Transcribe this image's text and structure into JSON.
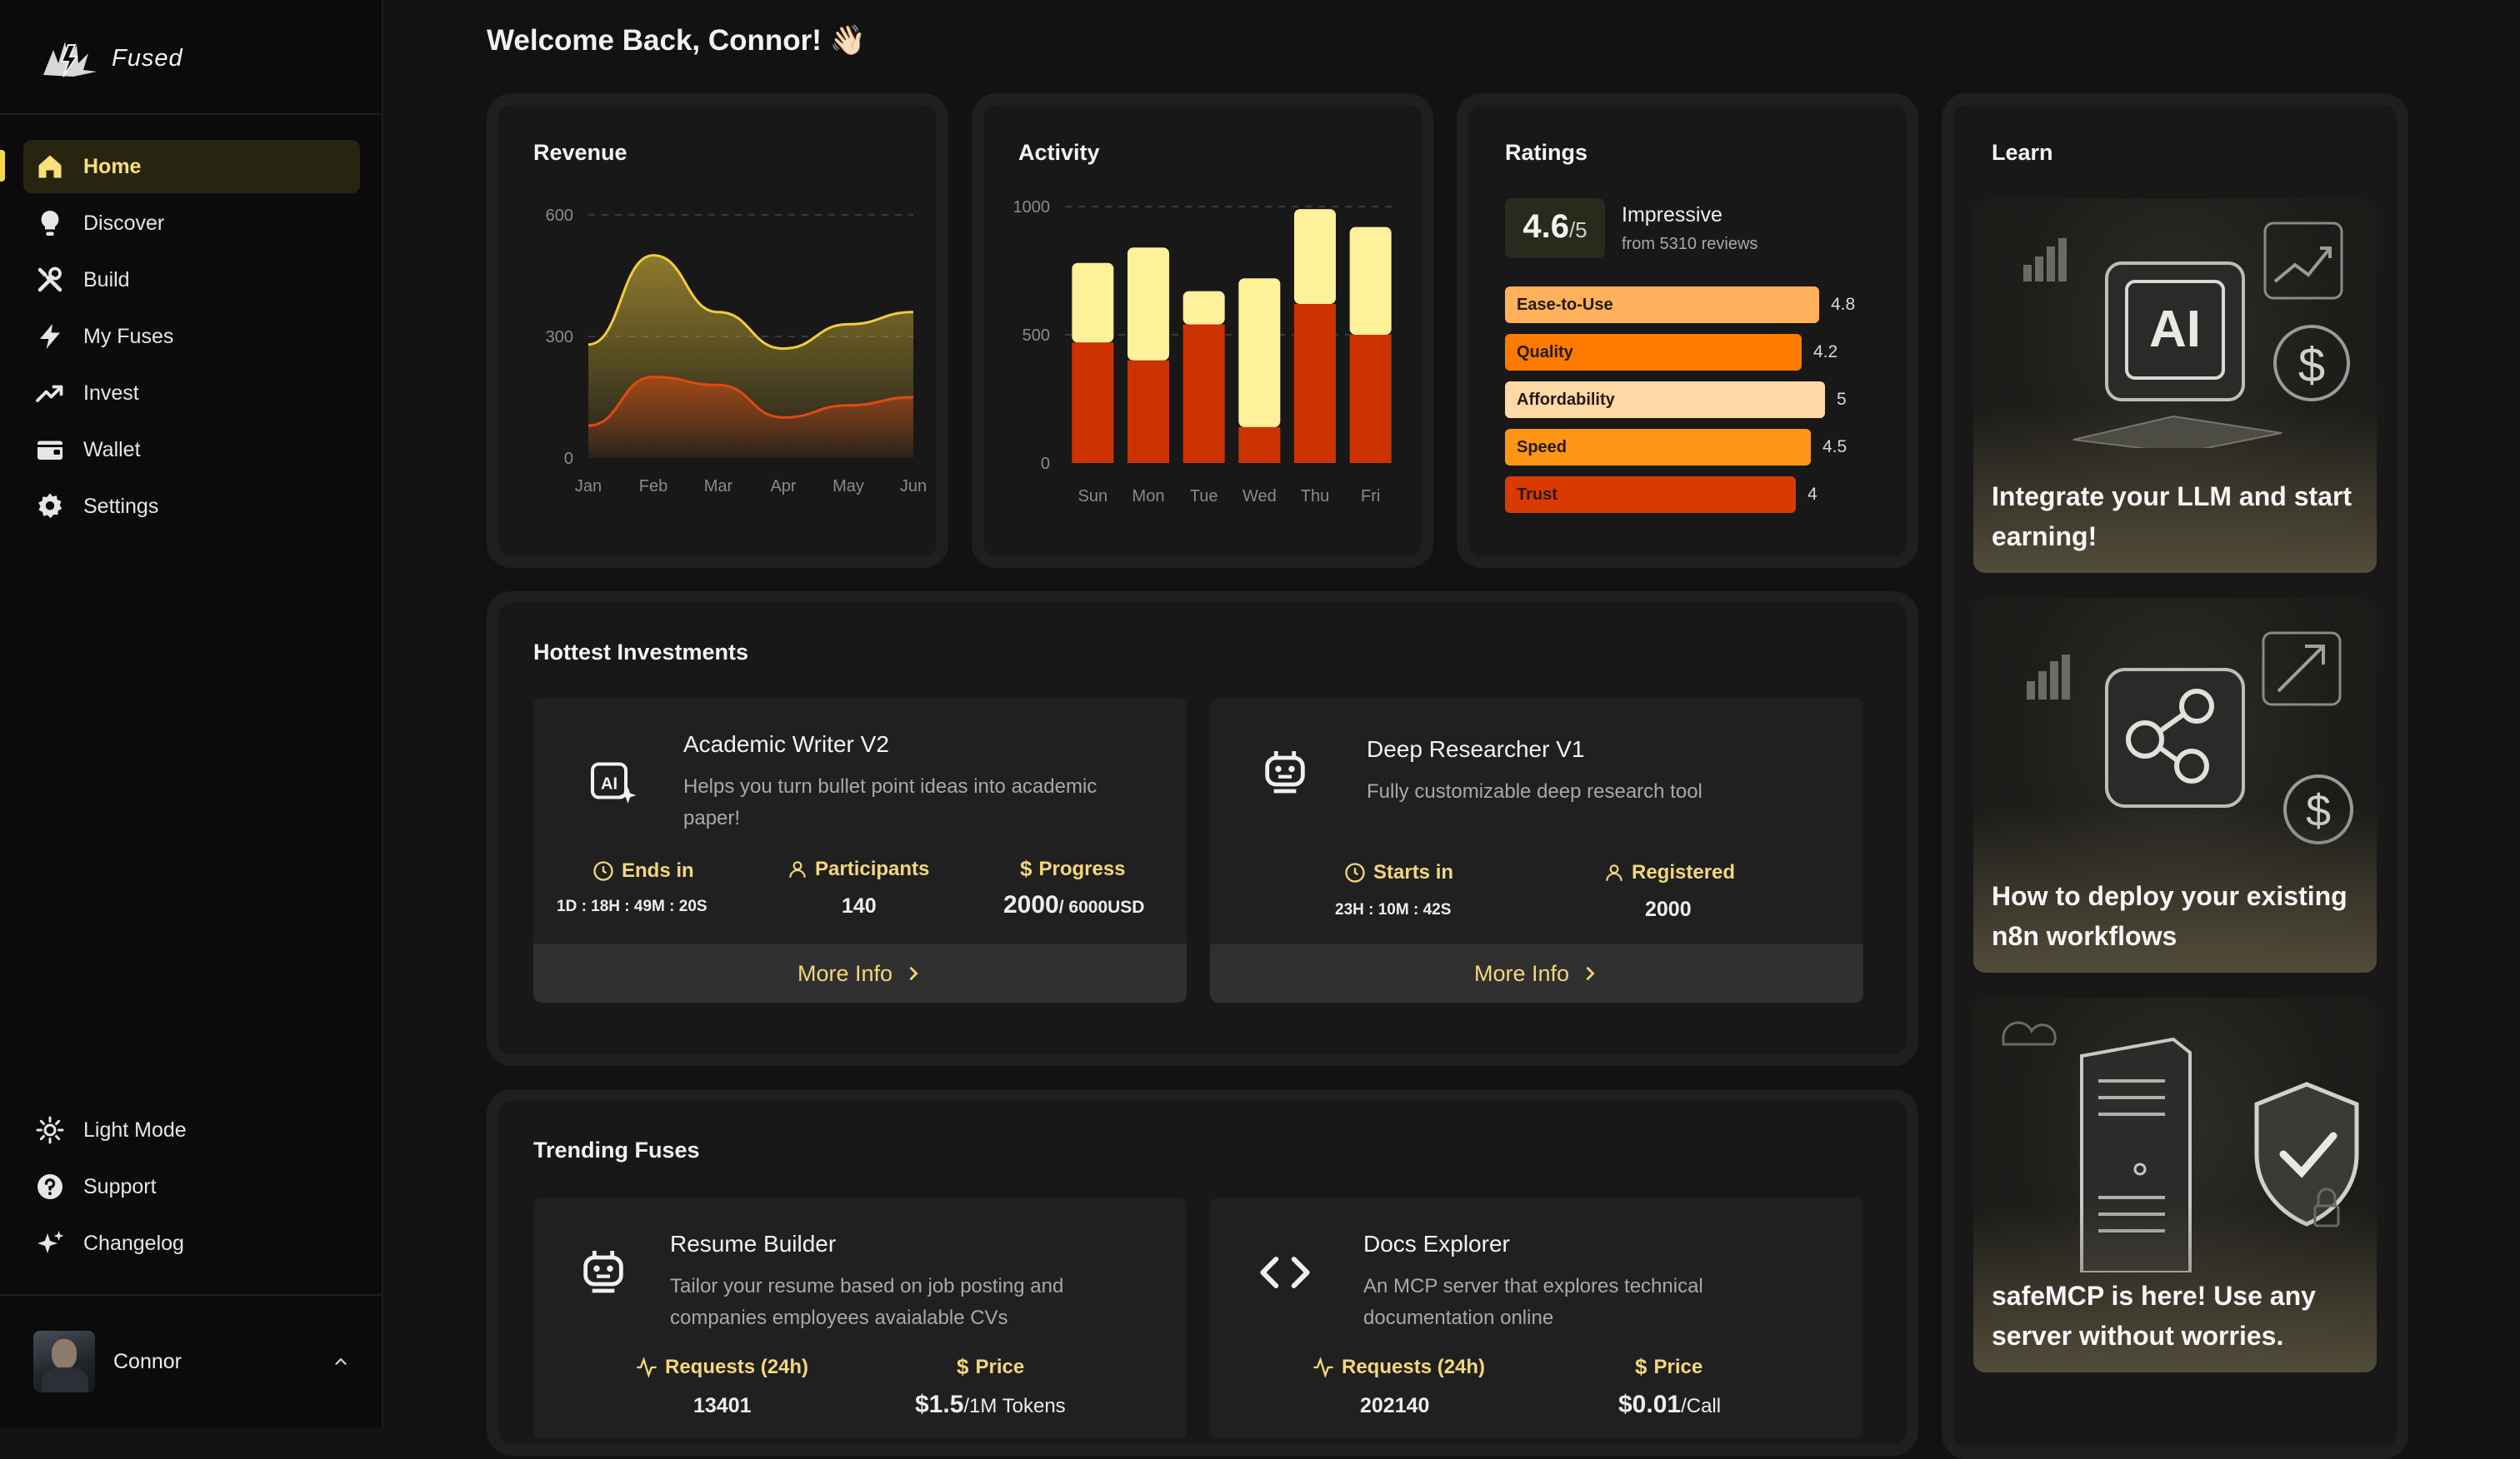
{
  "app": {
    "name": "Fused"
  },
  "sidebar": {
    "items": [
      {
        "label": "Home",
        "icon": "home-icon",
        "active": true
      },
      {
        "label": "Discover",
        "icon": "bulb-icon"
      },
      {
        "label": "Build",
        "icon": "tools-icon"
      },
      {
        "label": "My Fuses",
        "icon": "bolt-icon"
      },
      {
        "label": "Invest",
        "icon": "trend-icon"
      },
      {
        "label": "Wallet",
        "icon": "wallet-icon"
      },
      {
        "label": "Settings",
        "icon": "gear-icon"
      }
    ],
    "bottom": [
      {
        "label": "Light Mode",
        "icon": "sun-icon"
      },
      {
        "label": "Support",
        "icon": "help-icon"
      },
      {
        "label": "Changelog",
        "icon": "sparkle-icon"
      }
    ],
    "user": {
      "name": "Connor"
    }
  },
  "header": {
    "welcome": "Welcome Back, Connor! 👋🏻"
  },
  "revenue": {
    "title": "Revenue"
  },
  "activity": {
    "title": "Activity"
  },
  "ratings": {
    "title": "Ratings",
    "score": "4.6",
    "out_of": "/5",
    "verdict": "Impressive",
    "reviews": "from 5310 reviews",
    "rows": [
      {
        "label": "Ease-to-Use",
        "value": "4.8",
        "color": "#ffb15c"
      },
      {
        "label": "Quality",
        "value": "4.2",
        "color": "#ff7a00"
      },
      {
        "label": "Affordability",
        "value": "5",
        "color": "#ffd9a6"
      },
      {
        "label": "Speed",
        "value": "4.5",
        "color": "#ff9514"
      },
      {
        "label": "Trust",
        "value": "4",
        "color": "#d93a00"
      }
    ]
  },
  "chart_data": [
    {
      "type": "area",
      "title": "Revenue",
      "categories": [
        "Jan",
        "Feb",
        "Mar",
        "Apr",
        "May",
        "Jun"
      ],
      "yticks": [
        "0",
        "300",
        "600"
      ],
      "ylim": [
        0,
        600
      ],
      "series": [
        {
          "values": [
            280,
            500,
            360,
            270,
            330,
            360
          ],
          "color": "#f1cc3c"
        },
        {
          "values": [
            80,
            200,
            180,
            100,
            130,
            150
          ],
          "color": "#e04a12"
        }
      ]
    },
    {
      "type": "bar",
      "stacked": true,
      "title": "Activity",
      "categories": [
        "Sun",
        "Mon",
        "Tue",
        "Wed",
        "Thu",
        "Fri"
      ],
      "yticks": [
        "0",
        "500",
        "1000"
      ],
      "ylim": [
        0,
        1000
      ],
      "series": [
        {
          "values": [
            470,
            400,
            540,
            140,
            620,
            500
          ],
          "color": "#cc3300"
        },
        {
          "values": [
            310,
            440,
            130,
            580,
            370,
            420
          ],
          "color": "#fff09a"
        }
      ]
    }
  ],
  "investments": {
    "title": "Hottest Investments",
    "cards": [
      {
        "name": "Academic Writer V2",
        "desc": "Helps you turn bullet point ideas into academic paper!",
        "stats": [
          {
            "label": "Ends in",
            "value": "1D : 18H : 49M : 20S"
          },
          {
            "label": "Participants",
            "value": "140"
          },
          {
            "label": "Progress",
            "value": "2000",
            "suffix": "/ 6000USD"
          }
        ],
        "button": "More Info"
      },
      {
        "name": "Deep Researcher V1",
        "desc": "Fully customizable deep research tool",
        "stats": [
          {
            "label": "Starts in",
            "value": "23H : 10M : 42S"
          },
          {
            "label": "Registered",
            "value": "2000"
          }
        ],
        "button": "More Info"
      }
    ]
  },
  "trending": {
    "title": "Trending Fuses",
    "cards": [
      {
        "name": "Resume Builder",
        "desc": "Tailor your resume based on job posting and companies employees avaialable CVs",
        "stats": [
          {
            "label": "Requests (24h)",
            "value": "13401"
          },
          {
            "label": "Price",
            "value": "$1.5",
            "suffix": "/1M Tokens"
          }
        ]
      },
      {
        "name": "Docs Explorer",
        "desc": "An MCP server that explores technical documentation online",
        "stats": [
          {
            "label": "Requests (24h)",
            "value": "202140"
          },
          {
            "label": "Price",
            "value": "$0.01",
            "suffix": "/Call"
          }
        ]
      }
    ]
  },
  "learn": {
    "title": "Learn",
    "tiles": [
      {
        "text": "Integrate your LLM and start earning!",
        "icon": "ai-chip-icon"
      },
      {
        "text": "How to deploy your existing n8n workflows",
        "icon": "share-nodes-icon"
      },
      {
        "text": "safeMCP is here! Use any server without worries.",
        "icon": "server-shield-icon"
      }
    ]
  },
  "colors": {
    "accent": "#f4d77a",
    "active_bg": "#27250f"
  }
}
